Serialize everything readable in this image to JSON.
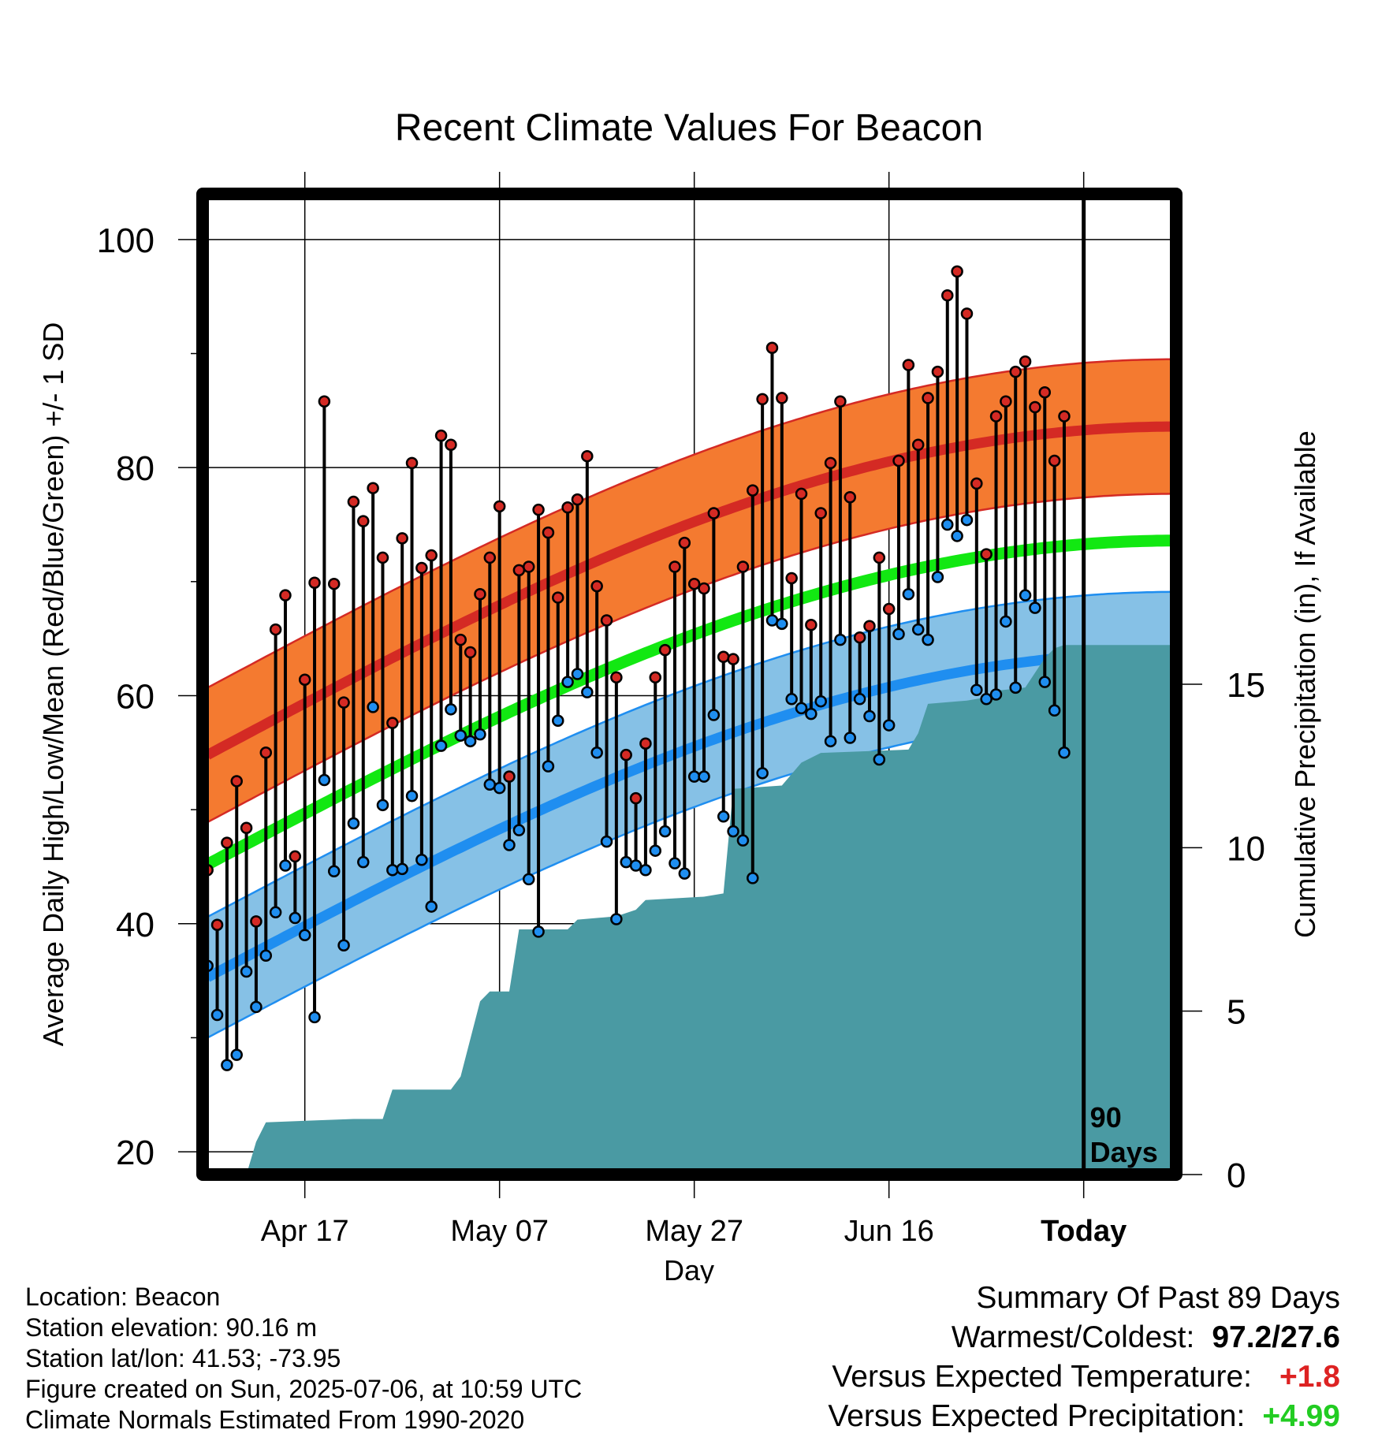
{
  "chart_data": {
    "type": "line",
    "title": "Recent Climate Values For Beacon",
    "xlabel": "Day",
    "ylabel": "Average Daily High/Low/Mean (Red/Blue/Green) +/- 1 SD",
    "y2label": "Cumulative Precipitation (in), If Available",
    "x_start": "2025-04-07",
    "x_ticks": [
      {
        "day": 10,
        "label": "Apr 17"
      },
      {
        "day": 30,
        "label": "May 07"
      },
      {
        "day": 50,
        "label": "May 27"
      },
      {
        "day": 70,
        "label": "Jun 16"
      },
      {
        "day": 90,
        "label": "Today"
      }
    ],
    "xlim": [
      -0.5,
      99.5
    ],
    "ylim": [
      18,
      104
    ],
    "y_ticks": [
      20,
      40,
      60,
      80,
      100
    ],
    "y2lim": [
      0,
      30
    ],
    "y2_ticks": [
      0,
      5,
      10,
      15
    ],
    "today_marker": {
      "day": 90,
      "label_line1": "90",
      "label_line2": "Days"
    },
    "normal_high": {
      "start": 54.8,
      "end": 83.6,
      "sd": 5.9
    },
    "normal_low": {
      "start": 35.3,
      "end": 63.8,
      "sd": 5.3
    },
    "normal_mean": {
      "start": 45.2,
      "end": 73.6
    },
    "highs": [
      44.7,
      39.9,
      47.1,
      52.5,
      48.4,
      40.2,
      55.0,
      65.8,
      68.8,
      45.9,
      61.4,
      69.9,
      85.8,
      69.8,
      59.4,
      77.0,
      75.3,
      78.2,
      72.1,
      57.6,
      73.8,
      80.4,
      71.2,
      72.3,
      82.8,
      82.0,
      64.9,
      63.8,
      68.9,
      72.1,
      76.6,
      52.9,
      71.0,
      71.3,
      76.3,
      74.3,
      68.6,
      76.5,
      77.2,
      81.0,
      69.6,
      66.6,
      61.6,
      54.8,
      51.0,
      55.8,
      61.6,
      64.0,
      71.3,
      73.4,
      69.8,
      69.4,
      76.0,
      63.4,
      63.2,
      71.3,
      78.0,
      86.0,
      90.5,
      86.1,
      70.3,
      77.7,
      66.2,
      76.0,
      80.4,
      85.8,
      77.4,
      65.1,
      66.1,
      72.1,
      67.6,
      80.6,
      89.0,
      82.0,
      86.1,
      88.4,
      95.1,
      97.2,
      93.5,
      78.6,
      72.4,
      84.5,
      85.8,
      88.4,
      89.3,
      85.3,
      86.6,
      80.6,
      84.5
    ],
    "lows": [
      36.3,
      32.0,
      27.6,
      28.5,
      35.8,
      32.7,
      37.2,
      41.0,
      45.1,
      40.5,
      39.0,
      31.8,
      52.6,
      44.6,
      38.1,
      48.8,
      45.4,
      59.0,
      50.4,
      44.7,
      44.8,
      51.2,
      45.6,
      41.5,
      55.6,
      58.8,
      56.5,
      56.0,
      56.6,
      52.2,
      51.9,
      46.9,
      48.2,
      43.9,
      39.3,
      53.8,
      57.8,
      61.2,
      61.9,
      60.3,
      55.0,
      47.2,
      40.4,
      45.4,
      45.1,
      44.7,
      46.4,
      48.1,
      45.3,
      44.4,
      52.9,
      52.9,
      58.3,
      49.4,
      48.1,
      47.3,
      44.0,
      53.2,
      66.6,
      66.3,
      59.7,
      58.9,
      58.4,
      59.5,
      56.0,
      64.9,
      56.3,
      59.7,
      58.2,
      54.4,
      57.4,
      65.4,
      68.9,
      65.8,
      64.9,
      70.4,
      75.0,
      74.0,
      75.4,
      60.5,
      59.7,
      60.1,
      66.5,
      60.7,
      68.8,
      67.7,
      61.2,
      58.7,
      55.0
    ],
    "precip": [
      [
        0,
        0
      ],
      [
        4,
        0
      ],
      [
        5,
        1.0
      ],
      [
        6,
        1.6
      ],
      [
        15,
        1.7
      ],
      [
        18,
        1.7
      ],
      [
        19,
        2.6
      ],
      [
        25,
        2.6
      ],
      [
        26,
        3.0
      ],
      [
        28,
        5.3
      ],
      [
        29,
        5.6
      ],
      [
        31,
        5.6
      ],
      [
        32,
        7.5
      ],
      [
        37,
        7.5
      ],
      [
        38,
        7.8
      ],
      [
        42,
        7.9
      ],
      [
        44,
        8.1
      ],
      [
        45,
        8.4
      ],
      [
        51,
        8.5
      ],
      [
        53,
        8.6
      ],
      [
        54,
        11.8
      ],
      [
        59,
        11.9
      ],
      [
        61,
        12.6
      ],
      [
        63,
        12.9
      ],
      [
        72,
        13.0
      ],
      [
        73,
        13.5
      ],
      [
        74,
        14.4
      ],
      [
        78,
        14.5
      ],
      [
        80,
        14.6
      ],
      [
        81,
        14.8
      ],
      [
        84,
        14.9
      ],
      [
        86,
        15.8
      ],
      [
        87,
        16.1
      ],
      [
        88,
        16.2
      ],
      [
        100,
        16.2
      ]
    ]
  },
  "info": {
    "location": "Location: Beacon",
    "elevation": "Station elevation: 90.16 m",
    "latlon": "Station lat/lon: 41.53; -73.95",
    "created": "Figure created on Sun, 2025-07-06, at 10:59 UTC",
    "normals": "Climate Normals Estimated From 1990-2020"
  },
  "summary": {
    "heading": "Summary Of Past 89 Days",
    "warm_cold_label": "Warmest/Coldest:",
    "warm_cold_value": "97.2/27.6",
    "temp_label": "Versus Expected Temperature:",
    "temp_value": "+1.8",
    "precip_label": "Versus Expected Precipitation:",
    "precip_value": "+4.99"
  },
  "colors": {
    "high_band": "#f47a30",
    "high_line": "#d42a24",
    "low_band": "#86c1e6",
    "low_line": "#1f8ef0",
    "mean_line": "#12e812",
    "precip_fill": "#4a9aa3",
    "high_dot": "#d42a24",
    "low_dot": "#1f8ef0",
    "temp_value": "#dd2222",
    "precip_value": "#22cc22"
  }
}
